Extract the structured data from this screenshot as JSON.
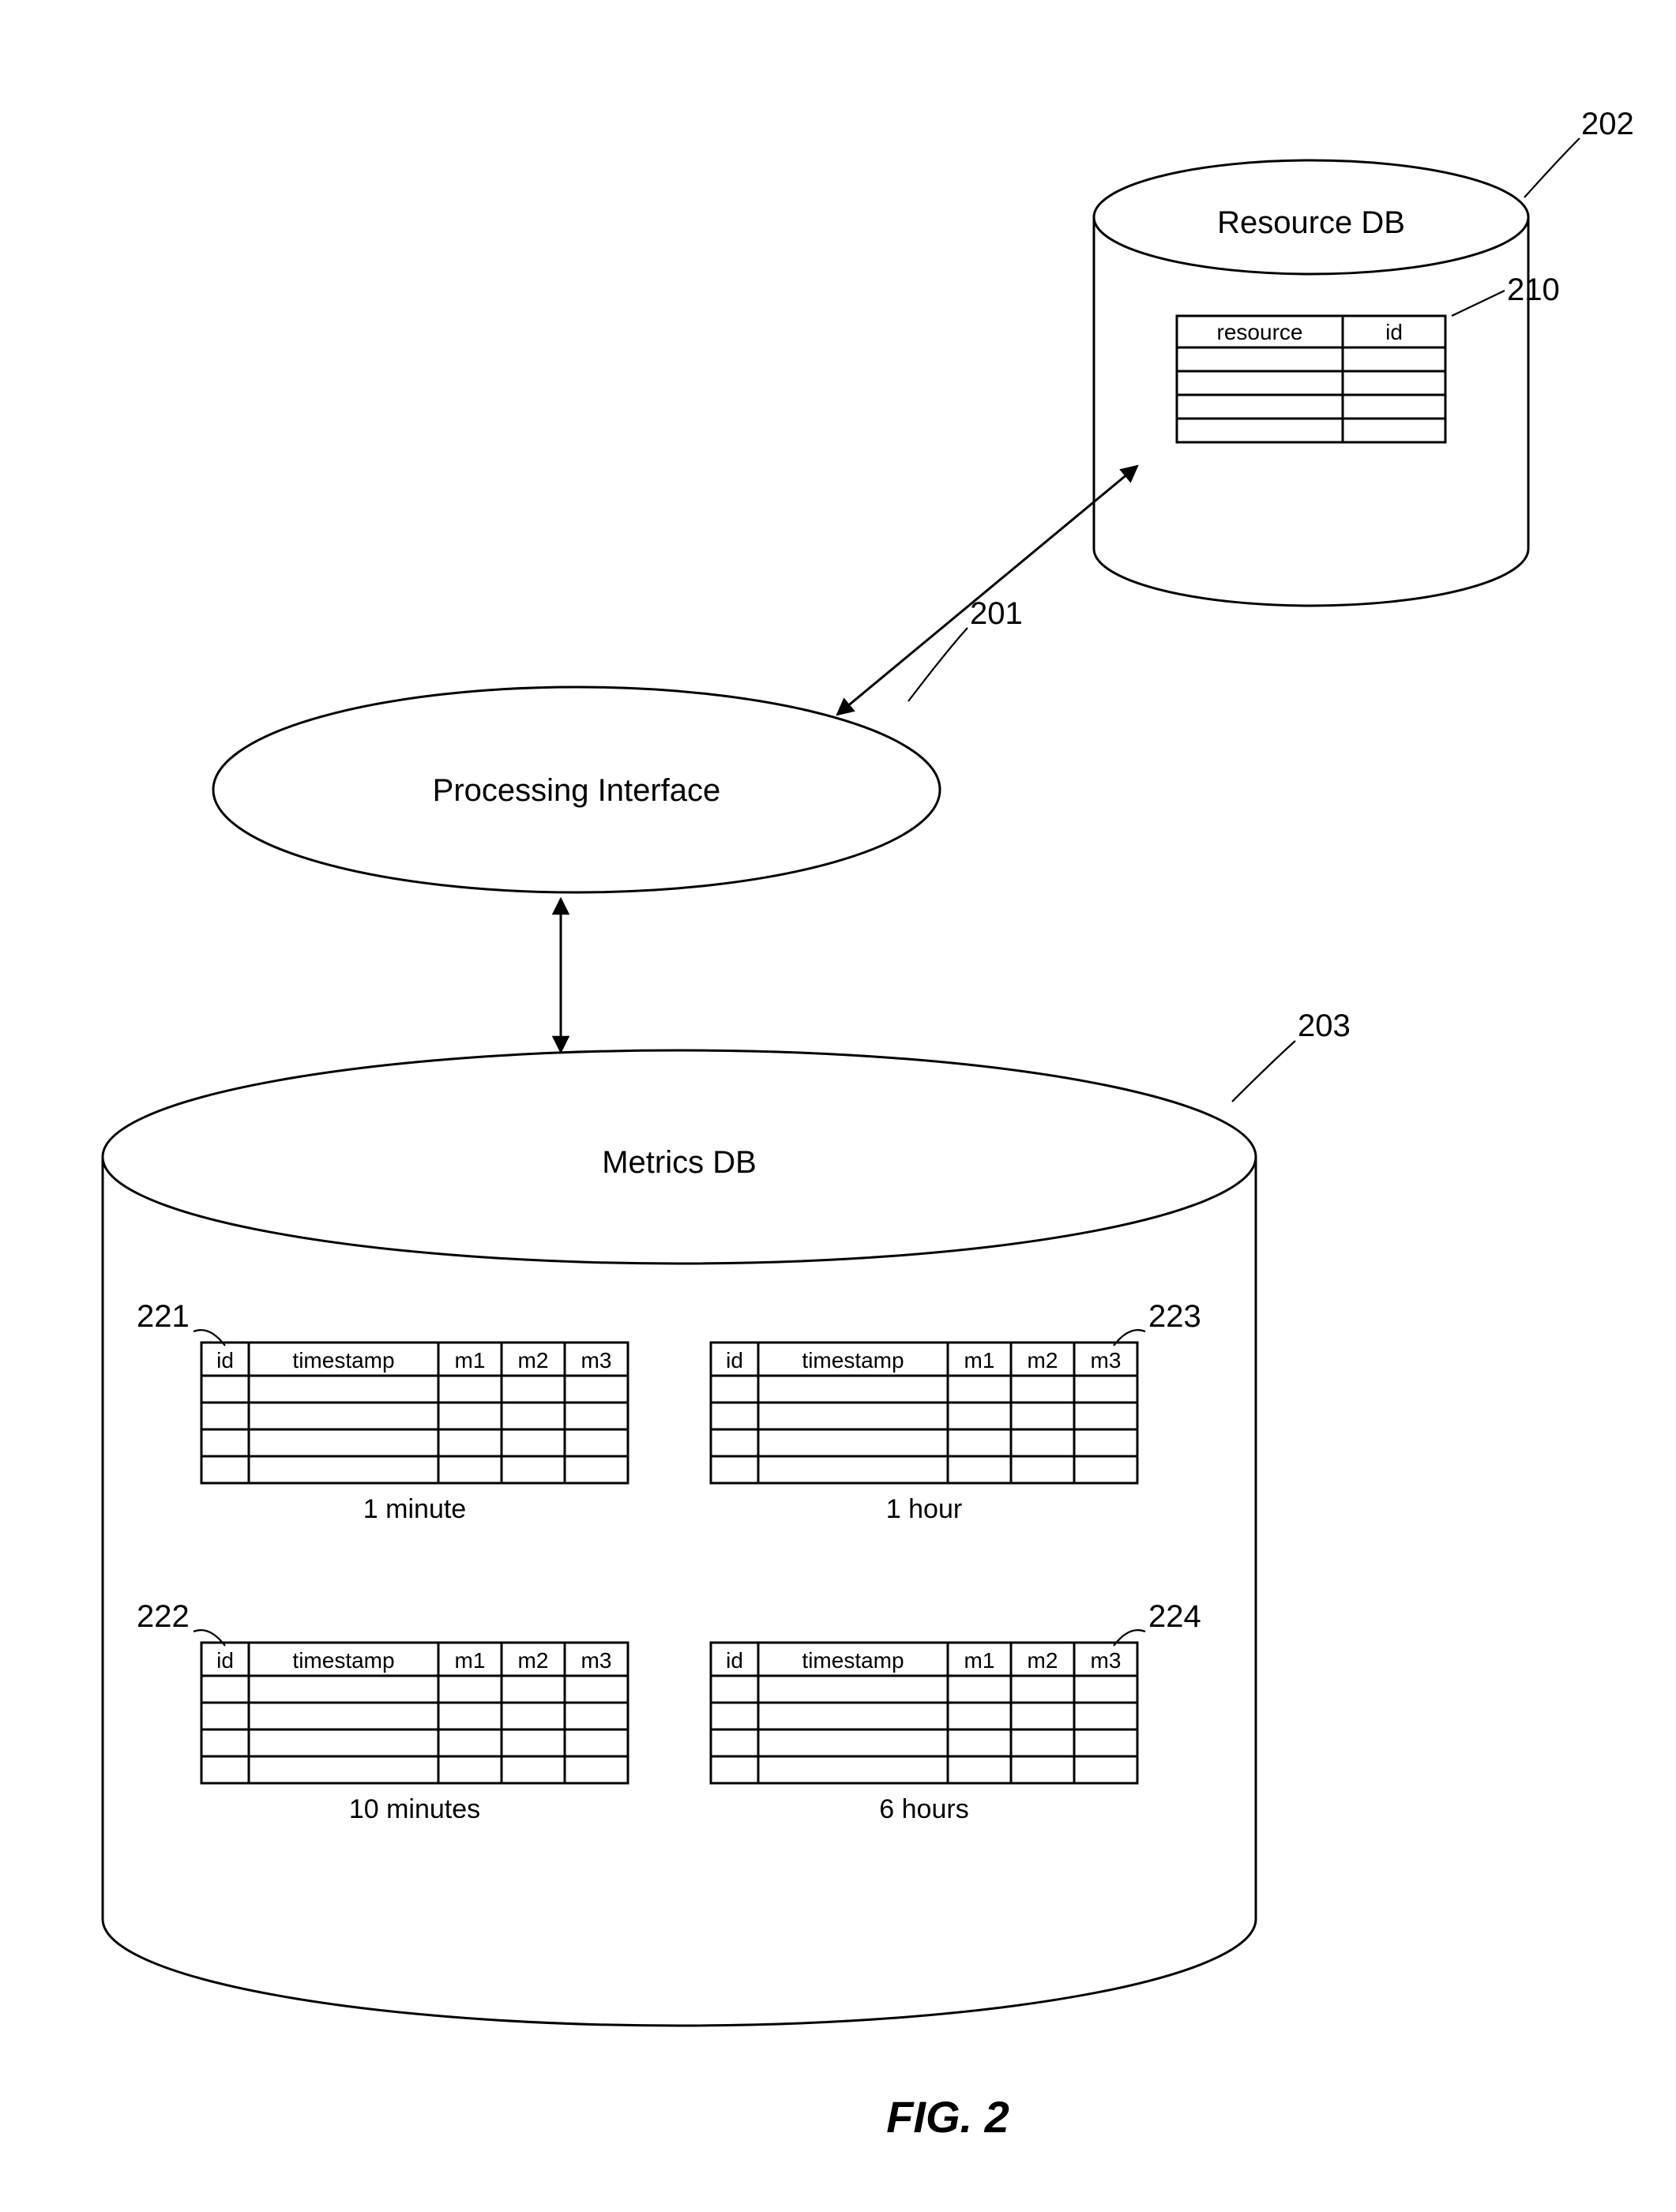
{
  "figure_label": "FIG. 2",
  "processing_interface": {
    "label": "Processing Interface",
    "ref": "201"
  },
  "resource_db": {
    "label": "Resource DB",
    "ref": "202",
    "table": {
      "ref": "210",
      "columns": [
        "resource",
        "id"
      ],
      "rows": 4
    }
  },
  "metrics_db": {
    "label": "Metrics DB",
    "ref": "203",
    "tables": [
      {
        "ref": "221",
        "caption": "1 minute",
        "columns": [
          "id",
          "timestamp",
          "m1",
          "m2",
          "m3"
        ],
        "rows": 4
      },
      {
        "ref": "222",
        "caption": "10 minutes",
        "columns": [
          "id",
          "timestamp",
          "m1",
          "m2",
          "m3"
        ],
        "rows": 4
      },
      {
        "ref": "223",
        "caption": "1 hour",
        "columns": [
          "id",
          "timestamp",
          "m1",
          "m2",
          "m3"
        ],
        "rows": 4
      },
      {
        "ref": "224",
        "caption": "6 hours",
        "columns": [
          "id",
          "timestamp",
          "m1",
          "m2",
          "m3"
        ],
        "rows": 4
      }
    ]
  },
  "style": {
    "font_family": "Arial, Helvetica, sans-serif",
    "label_fontsize": 40,
    "ref_fontsize": 40,
    "header_fontsize": 28,
    "caption_fontsize": 34,
    "fig_fontsize": 56,
    "stroke_color": "#000000",
    "stroke_width": 3,
    "bg": "#ffffff"
  }
}
